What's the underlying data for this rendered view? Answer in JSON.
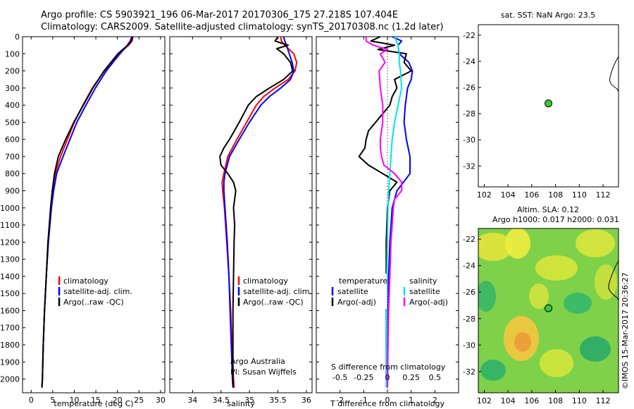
{
  "title": {
    "line1": "Argo profile: CS 5903921_196 06-Mar-2017 20170306_175 27.218S 107.404E",
    "line2": "Climatology: CARS2009. Satellite-adjusted climatology: synTS_20170308.nc (1.2d later)"
  },
  "credit": {
    "left_top": "Argo Australia",
    "left_bottom": "PI: Susan Wijffels",
    "side": "©IMOS 15-Mar-2017 20:36:27"
  },
  "colors": {
    "climatology": "#ff0000",
    "satellite": "#0000ff",
    "argo": "#000000",
    "sat_sal": "#00e5e5",
    "argo_sal": "#ff00ff",
    "dot": "#33cc33"
  },
  "chart_data": [
    {
      "id": "temperature",
      "type": "line",
      "xlabel": "temperature (deg C)",
      "ylabel": "",
      "xlim": [
        -2,
        31
      ],
      "ylim": [
        2080,
        0
      ],
      "xticks": [
        0,
        5,
        10,
        15,
        20,
        25,
        30
      ],
      "yticks": [
        0,
        100,
        200,
        300,
        400,
        500,
        600,
        700,
        800,
        900,
        1000,
        1100,
        1200,
        1300,
        1400,
        1500,
        1600,
        1700,
        1800,
        1900,
        2000
      ],
      "legend": [
        "climatology",
        "satellite-adj. clim.",
        "Argo(..raw -QC)"
      ],
      "series": [
        {
          "name": "climatology",
          "color": "climatology",
          "y": [
            0,
            25,
            50,
            100,
            150,
            200,
            300,
            400,
            500,
            600,
            700,
            800,
            900,
            1000,
            1200,
            1400,
            1600,
            1800,
            2000,
            2050
          ],
          "x": [
            23.6,
            23.4,
            22.6,
            20.3,
            18.8,
            17.0,
            14.2,
            12.0,
            10.0,
            8.4,
            6.8,
            5.6,
            5.0,
            4.6,
            3.9,
            3.5,
            3.1,
            2.8,
            2.6,
            2.5
          ]
        },
        {
          "name": "satellite-adj. clim.",
          "color": "satellite",
          "y": [
            0,
            25,
            50,
            100,
            150,
            200,
            300,
            400,
            500,
            600,
            700,
            800,
            900,
            1000,
            1200,
            1400,
            1600,
            1800,
            2000,
            2050
          ],
          "x": [
            23.3,
            23.0,
            22.3,
            20.6,
            19.0,
            17.4,
            14.9,
            12.7,
            10.6,
            9.0,
            7.4,
            5.9,
            5.2,
            4.7,
            4.0,
            3.5,
            3.1,
            2.8,
            2.6,
            2.5
          ]
        },
        {
          "name": "Argo(..raw -QC)",
          "color": "argo",
          "y": [
            0,
            25,
            50,
            100,
            150,
            200,
            300,
            400,
            500,
            600,
            700,
            800,
            900,
            1000,
            1200,
            1400,
            1600,
            1800,
            2000,
            2050
          ],
          "x": [
            23.5,
            23.2,
            22.4,
            20.1,
            18.5,
            16.9,
            14.3,
            12.1,
            9.9,
            8.0,
            6.3,
            5.4,
            4.9,
            4.5,
            3.9,
            3.5,
            3.1,
            2.8,
            2.6,
            2.5
          ]
        }
      ]
    },
    {
      "id": "salinity",
      "type": "line",
      "xlabel": "salinity",
      "ylabel": "",
      "xlim": [
        33.6,
        36.1
      ],
      "ylim": [
        2080,
        0
      ],
      "xticks": [
        34,
        34.5,
        35,
        35.5,
        36
      ],
      "legend": [
        "climatology",
        "satellite-adj. clim.",
        "Argo(..raw -QC)"
      ],
      "series": [
        {
          "name": "climatology",
          "color": "climatology",
          "y": [
            0,
            25,
            50,
            100,
            150,
            200,
            250,
            300,
            350,
            400,
            500,
            600,
            700,
            800,
            850,
            900,
            1000,
            1200,
            1400,
            1600,
            1800,
            2000,
            2050
          ],
          "x": [
            35.55,
            35.56,
            35.62,
            35.78,
            35.83,
            35.8,
            35.68,
            35.45,
            35.25,
            35.12,
            34.95,
            34.78,
            34.62,
            34.55,
            34.52,
            34.53,
            34.56,
            34.6,
            34.64,
            34.67,
            34.69,
            34.72,
            34.73
          ]
        },
        {
          "name": "satellite-adj. clim.",
          "color": "satellite",
          "y": [
            0,
            25,
            50,
            100,
            150,
            200,
            250,
            300,
            350,
            400,
            500,
            600,
            700,
            800,
            850,
            900,
            1000,
            1200,
            1400,
            1600,
            1800,
            2000,
            2050
          ],
          "x": [
            35.6,
            35.62,
            35.65,
            35.7,
            35.75,
            35.78,
            35.72,
            35.55,
            35.35,
            35.2,
            35.0,
            34.82,
            34.65,
            34.57,
            34.55,
            34.55,
            34.57,
            34.61,
            34.64,
            34.66,
            34.68,
            34.7,
            34.71
          ]
        },
        {
          "name": "Argo(..raw -QC)",
          "color": "argo",
          "y": [
            0,
            25,
            40,
            50,
            70,
            100,
            150,
            200,
            250,
            300,
            350,
            400,
            450,
            500,
            600,
            650,
            700,
            750,
            800,
            850,
            900,
            950,
            1000,
            1100,
            1200,
            1400,
            1600,
            1800,
            2000,
            2050
          ],
          "x": [
            35.5,
            35.45,
            35.58,
            35.68,
            35.48,
            35.6,
            35.72,
            35.76,
            35.6,
            35.35,
            35.12,
            34.98,
            34.9,
            34.82,
            34.65,
            34.55,
            34.48,
            34.5,
            34.62,
            34.72,
            34.76,
            34.74,
            34.72,
            34.74,
            34.73,
            34.72,
            34.71,
            34.71,
            34.71,
            34.72
          ]
        }
      ]
    },
    {
      "id": "difference",
      "type": "line",
      "xlabel": "T difference from climatology",
      "xlabel_top": "S difference from climatology",
      "xlim": [
        -3,
        3
      ],
      "ylim": [
        2080,
        0
      ],
      "xticks": [
        -2,
        -1,
        0,
        1,
        2
      ],
      "sticks": [
        -0.5,
        -0.25,
        0,
        0.25,
        0.5
      ],
      "legend_left": {
        "header": "temperature",
        "items": [
          "satellite",
          "Argo(-adj)"
        ]
      },
      "legend_right": {
        "header": "salinity",
        "items": [
          "satellite",
          "Argo(-adj)"
        ]
      },
      "series": [
        {
          "name": "satellite",
          "group": "temperature",
          "color": "satellite",
          "y": [
            0,
            25,
            50,
            100,
            150,
            200,
            250,
            300,
            400,
            500,
            600,
            700,
            800,
            900,
            1000,
            1200,
            1400,
            1600,
            1800,
            2000,
            2050
          ],
          "x": [
            0.2,
            0.6,
            0.45,
            0.5,
            0.9,
            1.05,
            1.0,
            0.85,
            0.75,
            0.7,
            0.8,
            0.95,
            0.95,
            0.4,
            0.2,
            0.1,
            0.05,
            0.03,
            0.02,
            0.01,
            0.0
          ]
        },
        {
          "name": "Argo(-adj)",
          "group": "temperature",
          "color": "argo",
          "y": [
            0,
            25,
            50,
            75,
            100,
            150,
            200,
            250,
            300,
            350,
            400,
            450,
            500,
            550,
            600,
            650,
            700,
            750,
            800,
            850,
            900,
            1000,
            1200,
            1400,
            1600,
            1800,
            2000,
            2050
          ],
          "x": [
            -0.3,
            -0.7,
            0.3,
            -0.4,
            0.8,
            0.7,
            1.0,
            0.3,
            0.4,
            0.2,
            0.1,
            -0.2,
            -0.5,
            -0.8,
            -0.9,
            -0.95,
            -1.2,
            -0.8,
            -0.2,
            0.4,
            0.1,
            0.0,
            -0.05,
            -0.05,
            -0.05,
            -0.05,
            -0.05,
            0.0
          ]
        },
        {
          "name": "satellite",
          "group": "salinity",
          "color": "sat_sal",
          "y": [
            0,
            50,
            100,
            150,
            200,
            300,
            400,
            500,
            600,
            700,
            800,
            900,
            1000,
            1200,
            1400,
            1600,
            1800,
            2000,
            2050
          ],
          "x": [
            0.3,
            0.45,
            0.5,
            0.5,
            0.55,
            0.6,
            0.45,
            0.3,
            0.2,
            0.15,
            0.1,
            0.05,
            0.02,
            0.0,
            -0.02,
            -0.05,
            -0.05,
            -0.05,
            -0.05
          ]
        },
        {
          "name": "Argo(-adj)",
          "group": "salinity",
          "color": "argo_sal",
          "y": [
            0,
            25,
            50,
            75,
            100,
            150,
            200,
            300,
            400,
            500,
            600,
            650,
            700,
            750,
            800,
            850,
            900,
            950,
            1000,
            1200,
            1400,
            1600,
            1800,
            2000,
            2050
          ],
          "x": [
            -0.9,
            -0.9,
            -0.6,
            0.0,
            -0.3,
            -0.1,
            -0.35,
            -0.3,
            -0.2,
            -0.2,
            -0.3,
            -0.3,
            -0.25,
            -0.15,
            0.3,
            0.6,
            0.6,
            0.3,
            0.25,
            0.15,
            0.1,
            0.05,
            0.02,
            0.0,
            0.0
          ]
        }
      ]
    },
    {
      "id": "sst_map",
      "type": "scatter",
      "title": "sat. SST: NaN Argo: 23.5",
      "xlim": [
        101.5,
        113.3
      ],
      "ylim": [
        -33.6,
        -21.2
      ],
      "xticks": [
        102,
        104,
        106,
        108,
        110,
        112
      ],
      "yticks": [
        -22,
        -24,
        -26,
        -28,
        -30,
        -32
      ],
      "points": [
        {
          "x": 107.404,
          "y": -27.218
        }
      ]
    },
    {
      "id": "sla_map",
      "type": "heatmap",
      "title_line1": "Altim. SLA: 0.12",
      "title_line2": "Argo h1000: 0.017 h2000: 0.031",
      "xlim": [
        101.5,
        113.3
      ],
      "ylim": [
        -33.6,
        -21.2
      ],
      "xticks": [
        102,
        104,
        106,
        108,
        110,
        112
      ],
      "yticks": [
        -22,
        -24,
        -26,
        -28,
        -30,
        -32
      ],
      "points": [
        {
          "x": 107.404,
          "y": -27.218
        }
      ]
    }
  ]
}
